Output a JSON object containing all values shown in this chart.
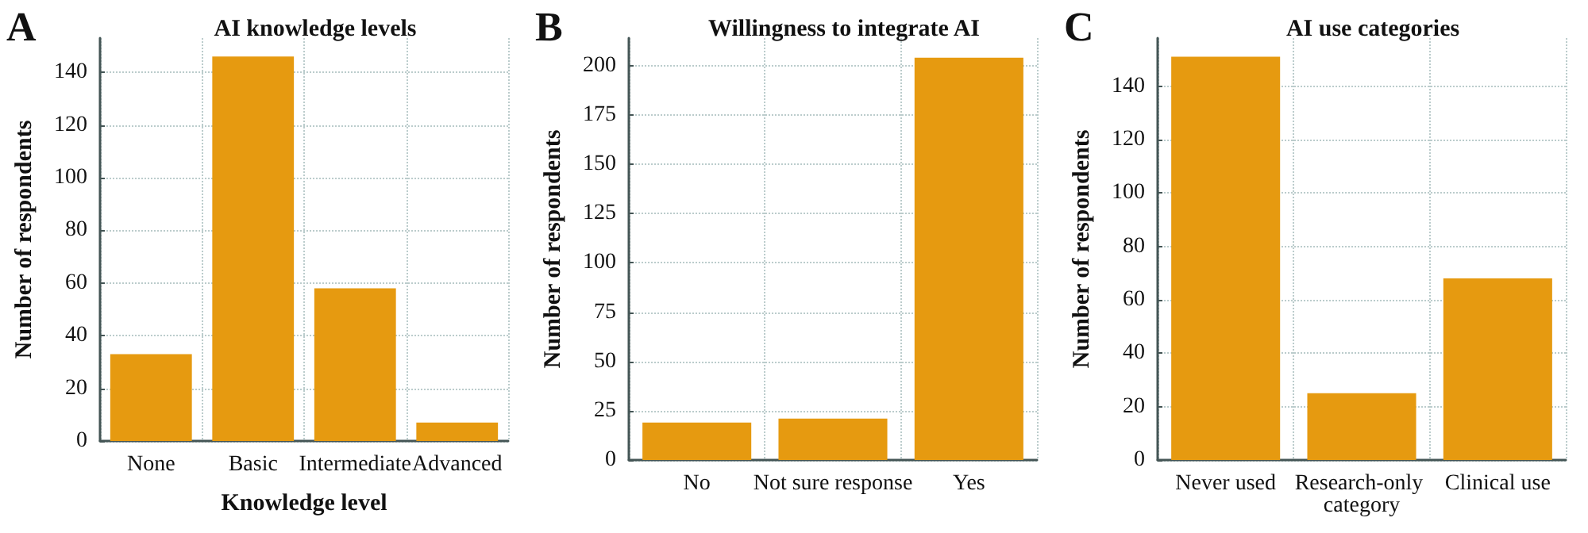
{
  "chart_data": [
    {
      "type": "bar",
      "title": "AI knowledge levels",
      "xlabel": "Knowledge level",
      "ylabel": "Number of respondents",
      "annotations": [
        "A"
      ],
      "categories": [
        "None",
        "Basic",
        "Intermediate",
        "Advanced"
      ],
      "values": [
        33,
        146,
        58,
        7
      ],
      "color": "#e69a10",
      "ylim": [
        0,
        153
      ],
      "yticks": [
        0,
        20,
        40,
        60,
        80,
        100,
        120,
        140
      ],
      "grid": true
    },
    {
      "type": "bar",
      "title": "Willingness to integrate AI",
      "ylabel": "Number of respondents",
      "annotations": [
        "B"
      ],
      "categories": [
        "No",
        "Not sure response",
        "Yes"
      ],
      "values": [
        19,
        21,
        204
      ],
      "color": "#e69a10",
      "ylim": [
        0,
        214
      ],
      "yticks": [
        0,
        25,
        50,
        75,
        100,
        125,
        150,
        175,
        200
      ],
      "grid": true
    },
    {
      "type": "bar",
      "title": "AI use categories",
      "ylabel": "Number of respondents",
      "annotations": [
        "C"
      ],
      "categories": [
        "Never used",
        "Research-only category",
        "Clinical use"
      ],
      "values": [
        151,
        25,
        68
      ],
      "color": "#e69a10",
      "ylim": [
        0,
        158
      ],
      "yticks": [
        0,
        20,
        40,
        60,
        80,
        100,
        120,
        140
      ],
      "grid": true
    }
  ]
}
